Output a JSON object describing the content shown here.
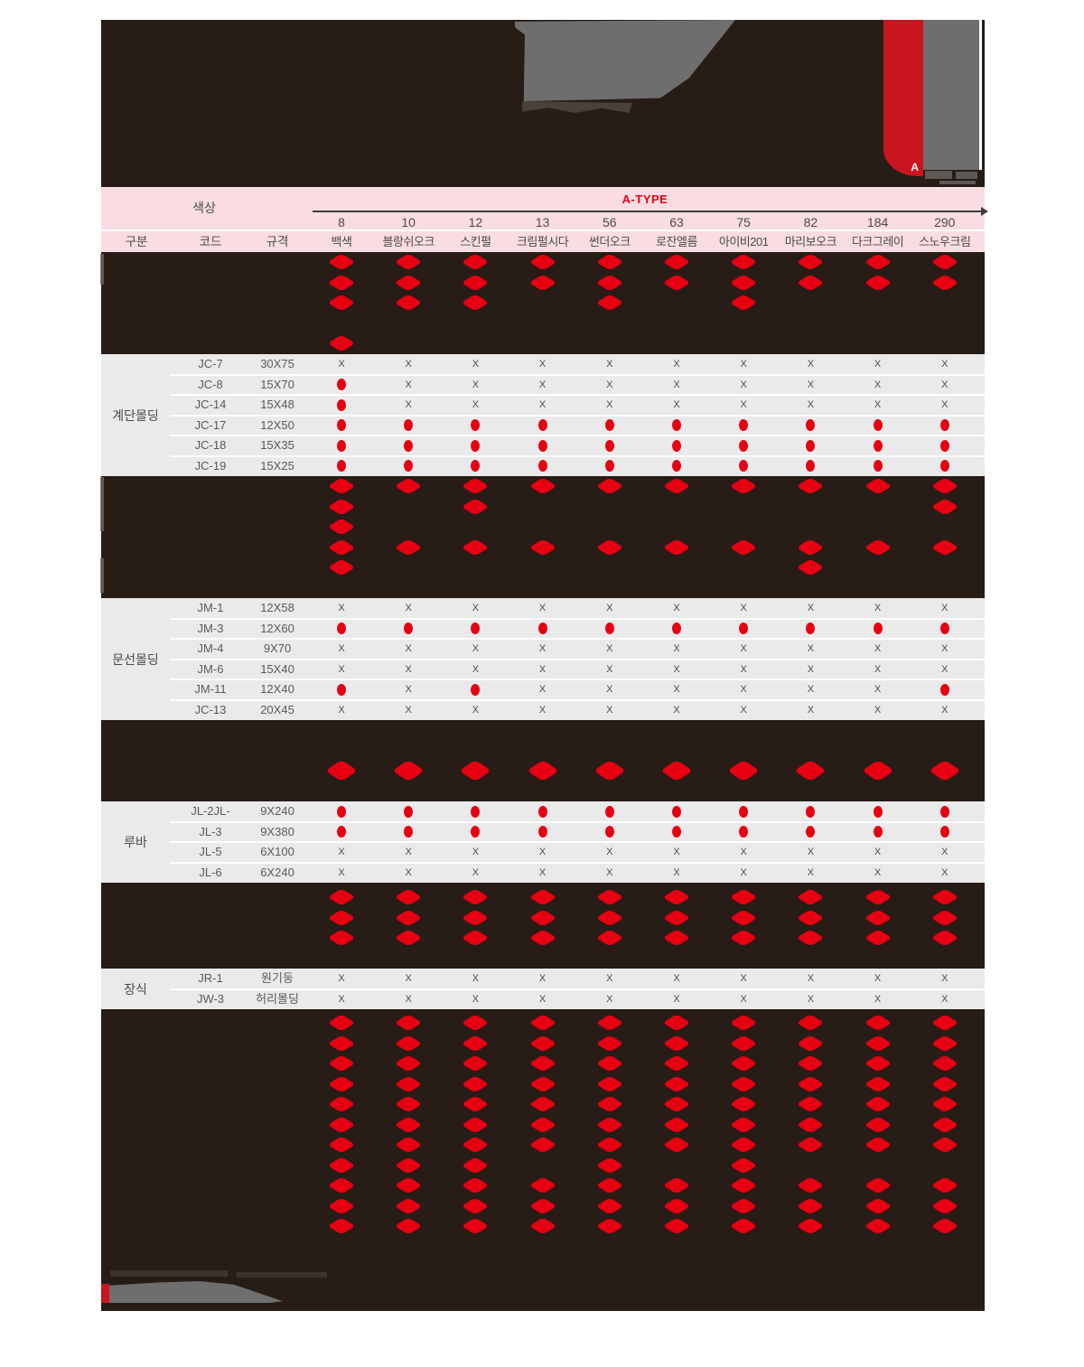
{
  "header": {
    "ribbon_letter": "A"
  },
  "colors": {
    "accent_red": "#e60012",
    "ribbon_red": "#c9161e",
    "header_pink": "#fadde2",
    "dark_bg": "#271c16",
    "panel_gray": "#6e6e6e",
    "light_row_bg": "#eaeaea",
    "x_mark_color": "#4c4c4c"
  },
  "table": {
    "group_label": "색상",
    "type_label": "A-TYPE",
    "col_headers": [
      "구분",
      "코드",
      "규격"
    ],
    "x_symbol": "X",
    "columns": [
      {
        "num": "8",
        "name": "백색"
      },
      {
        "num": "10",
        "name": "블랑쉬오크"
      },
      {
        "num": "12",
        "name": "스킨펄"
      },
      {
        "num": "13",
        "name": "크림펄시다"
      },
      {
        "num": "56",
        "name": "썬더오크"
      },
      {
        "num": "63",
        "name": "로잔엘름"
      },
      {
        "num": "75",
        "name": "아이비201"
      },
      {
        "num": "82",
        "name": "마리보오크"
      },
      {
        "num": "184",
        "name": "다크그레이"
      },
      {
        "num": "290",
        "name": "스노우크림"
      }
    ],
    "sections": [
      {
        "id": "dark-a",
        "kind": "dark",
        "slots": [
          {
            "marks": [
              1,
              1,
              1,
              1,
              1,
              1,
              1,
              1,
              1,
              1
            ]
          },
          {
            "marks": [
              1,
              1,
              1,
              1,
              1,
              1,
              1,
              1,
              1,
              1
            ]
          },
          {
            "marks": [
              1,
              1,
              1,
              0,
              1,
              0,
              1,
              0,
              0,
              0
            ]
          },
          {
            "marks": [
              0,
              0,
              0,
              0,
              0,
              0,
              0,
              0,
              0,
              0
            ]
          },
          {
            "marks": [
              1,
              0,
              0,
              0,
              0,
              0,
              0,
              0,
              0,
              0
            ]
          }
        ]
      },
      {
        "id": "stair-molding",
        "kind": "light",
        "category": "계단몰딩",
        "rows": [
          {
            "code": "JC-7",
            "spec": "30X75",
            "cells": [
              "x",
              "x",
              "x",
              "x",
              "x",
              "x",
              "x",
              "x",
              "x",
              "x"
            ]
          },
          {
            "code": "JC-8",
            "spec": "15X70",
            "cells": [
              "dot",
              "x",
              "x",
              "x",
              "x",
              "x",
              "x",
              "x",
              "x",
              "x"
            ]
          },
          {
            "code": "JC-14",
            "spec": "15X48",
            "cells": [
              "dot",
              "x",
              "x",
              "x",
              "x",
              "x",
              "x",
              "x",
              "x",
              "x"
            ]
          },
          {
            "code": "JC-17",
            "spec": "12X50",
            "cells": [
              "dot",
              "dot",
              "dot",
              "dot",
              "dot",
              "dot",
              "dot",
              "dot",
              "dot",
              "dot"
            ]
          },
          {
            "code": "JC-18",
            "spec": "15X35",
            "cells": [
              "dot",
              "dot",
              "dot",
              "dot",
              "dot",
              "dot",
              "dot",
              "dot",
              "dot",
              "dot"
            ]
          },
          {
            "code": "JC-19",
            "spec": "15X25",
            "cells": [
              "dot",
              "dot",
              "dot",
              "dot",
              "dot",
              "dot",
              "dot",
              "dot",
              "dot",
              "dot"
            ]
          }
        ]
      },
      {
        "id": "dark-b",
        "kind": "dark",
        "slots": [
          {
            "marks": [
              1,
              1,
              1,
              1,
              1,
              1,
              1,
              1,
              1,
              1
            ]
          },
          {
            "marks": [
              1,
              0,
              1,
              0,
              0,
              0,
              0,
              0,
              0,
              1
            ]
          },
          {
            "marks": [
              1,
              0,
              0,
              0,
              0,
              0,
              0,
              0,
              0,
              0
            ]
          },
          {
            "marks": [
              1,
              1,
              1,
              1,
              1,
              1,
              1,
              1,
              1,
              1
            ]
          },
          {
            "marks": [
              1,
              0,
              0,
              0,
              0,
              0,
              0,
              1,
              0,
              0
            ]
          },
          {
            "marks": [
              0,
              0,
              0,
              0,
              0,
              0,
              0,
              0,
              0,
              0
            ]
          }
        ]
      },
      {
        "id": "door-molding",
        "kind": "light",
        "category": "문선몰딩",
        "rows": [
          {
            "code": "JM-1",
            "spec": "12X58",
            "cells": [
              "x",
              "x",
              "x",
              "x",
              "x",
              "x",
              "x",
              "x",
              "x",
              "x"
            ]
          },
          {
            "code": "JM-3",
            "spec": "12X60",
            "cells": [
              "dot",
              "dot",
              "dot",
              "dot",
              "dot",
              "dot",
              "dot",
              "dot",
              "dot",
              "dot"
            ]
          },
          {
            "code": "JM-4",
            "spec": "9X70",
            "cells": [
              "x",
              "x",
              "x",
              "x",
              "x",
              "x",
              "x",
              "x",
              "x",
              "x"
            ]
          },
          {
            "code": "JM-6",
            "spec": "15X40",
            "cells": [
              "x",
              "x",
              "x",
              "x",
              "x",
              "x",
              "x",
              "x",
              "x",
              "x"
            ]
          },
          {
            "code": "JM-11",
            "spec": "12X40",
            "cells": [
              "dot",
              "x",
              "dot",
              "x",
              "x",
              "x",
              "x",
              "x",
              "x",
              "dot"
            ]
          },
          {
            "code": "JC-13",
            "spec": "20X45",
            "cells": [
              "x",
              "x",
              "x",
              "x",
              "x",
              "x",
              "x",
              "x",
              "x",
              "x"
            ]
          }
        ]
      },
      {
        "id": "dark-c",
        "kind": "dark",
        "big": true,
        "slots": [
          {
            "marks": [
              0,
              0,
              0,
              0,
              0,
              0,
              0,
              0,
              0,
              0
            ]
          },
          {
            "marks": [
              0,
              0,
              0,
              0,
              0,
              0,
              0,
              0,
              0,
              0
            ]
          },
          {
            "marks": [
              1,
              1,
              1,
              1,
              1,
              1,
              1,
              1,
              1,
              1
            ]
          },
          {
            "marks": [
              0,
              0,
              0,
              0,
              0,
              0,
              0,
              0,
              0,
              0
            ]
          }
        ]
      },
      {
        "id": "louver",
        "kind": "light",
        "category": "루바",
        "rows": [
          {
            "code": "JL-2JL-",
            "spec": "9X240",
            "cells": [
              "dot",
              "dot",
              "dot",
              "dot",
              "dot",
              "dot",
              "dot",
              "dot",
              "dot",
              "dot"
            ]
          },
          {
            "code": "JL-3",
            "spec": "9X380",
            "cells": [
              "dot",
              "dot",
              "dot",
              "dot",
              "dot",
              "dot",
              "dot",
              "dot",
              "dot",
              "dot"
            ]
          },
          {
            "code": "JL-5",
            "spec": "6X100",
            "cells": [
              "x",
              "x",
              "x",
              "x",
              "x",
              "x",
              "x",
              "x",
              "x",
              "x"
            ]
          },
          {
            "code": "JL-6",
            "spec": "6X240",
            "cells": [
              "x",
              "x",
              "x",
              "x",
              "x",
              "x",
              "x",
              "x",
              "x",
              "x"
            ]
          }
        ]
      },
      {
        "id": "dark-d",
        "kind": "dark",
        "slots": [
          {
            "marks": [
              1,
              1,
              1,
              1,
              1,
              1,
              1,
              1,
              1,
              1
            ]
          },
          {
            "marks": [
              1,
              1,
              1,
              1,
              1,
              1,
              1,
              1,
              1,
              1
            ]
          },
          {
            "marks": [
              1,
              1,
              1,
              1,
              1,
              1,
              1,
              1,
              1,
              1
            ]
          },
          {
            "marks": [
              0,
              0,
              0,
              0,
              0,
              0,
              0,
              0,
              0,
              0
            ]
          }
        ]
      },
      {
        "id": "decoration",
        "kind": "light",
        "category": "장식",
        "rows": [
          {
            "code": "JR-1",
            "spec": "원기둥",
            "cells": [
              "x",
              "x",
              "x",
              "x",
              "x",
              "x",
              "x",
              "x",
              "x",
              "x"
            ]
          },
          {
            "code": "JW-3",
            "spec": "허리몰딩",
            "cells": [
              "x",
              "x",
              "x",
              "x",
              "x",
              "x",
              "x",
              "x",
              "x",
              "x"
            ]
          }
        ]
      },
      {
        "id": "dark-e",
        "kind": "dark",
        "slots": [
          {
            "marks": [
              1,
              1,
              1,
              1,
              1,
              1,
              1,
              1,
              1,
              1
            ]
          },
          {
            "marks": [
              1,
              1,
              1,
              1,
              1,
              1,
              1,
              1,
              1,
              1
            ]
          },
          {
            "marks": [
              1,
              1,
              1,
              1,
              1,
              1,
              1,
              1,
              1,
              1
            ]
          },
          {
            "marks": [
              1,
              1,
              1,
              1,
              1,
              1,
              1,
              1,
              1,
              1
            ]
          },
          {
            "marks": [
              1,
              1,
              1,
              1,
              1,
              1,
              1,
              1,
              1,
              1
            ]
          },
          {
            "marks": [
              1,
              1,
              1,
              1,
              1,
              1,
              1,
              1,
              1,
              1
            ]
          },
          {
            "marks": [
              1,
              1,
              1,
              1,
              1,
              1,
              1,
              1,
              1,
              1
            ]
          },
          {
            "marks": [
              1,
              1,
              1,
              0,
              1,
              0,
              1,
              0,
              0,
              0
            ]
          },
          {
            "marks": [
              1,
              1,
              1,
              1,
              1,
              1,
              1,
              1,
              1,
              1
            ]
          },
          {
            "marks": [
              1,
              1,
              1,
              1,
              1,
              1,
              1,
              1,
              1,
              1
            ]
          },
          {
            "marks": [
              1,
              1,
              1,
              1,
              1,
              1,
              1,
              1,
              1,
              1
            ]
          }
        ]
      }
    ]
  }
}
